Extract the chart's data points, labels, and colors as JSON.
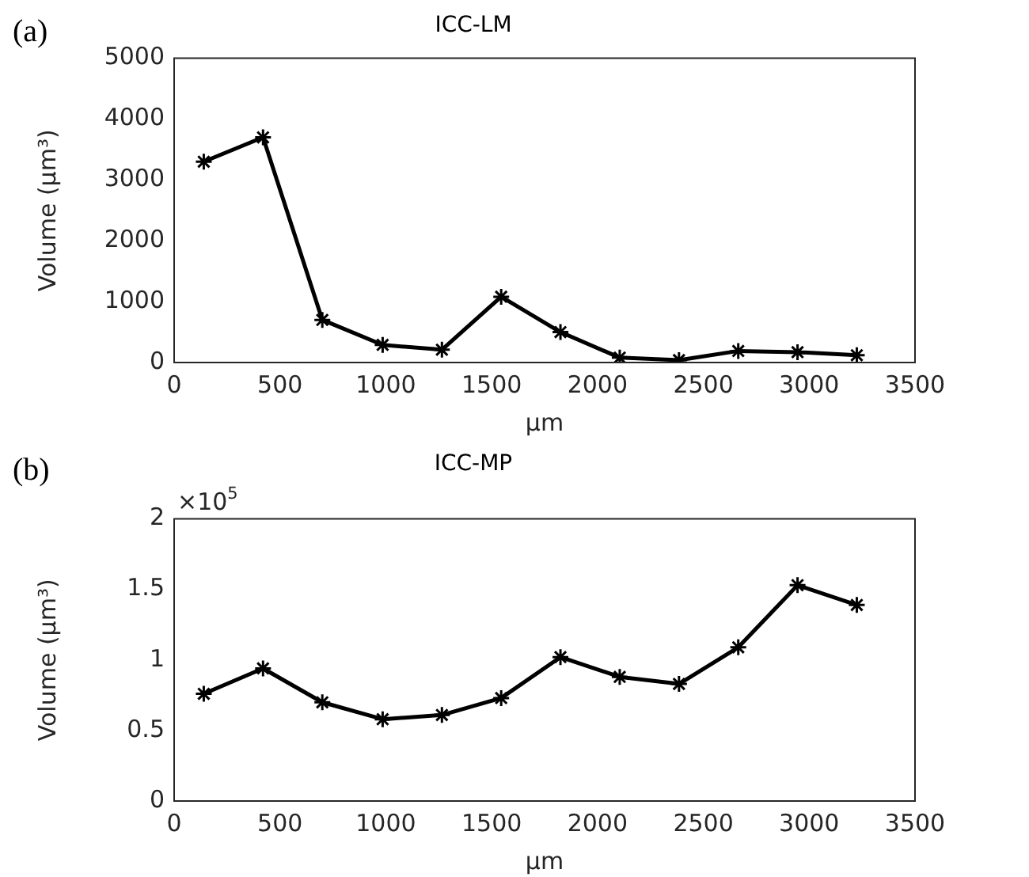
{
  "chart_data": [
    {
      "type": "line",
      "title": "ICC-LM",
      "xlabel": "μm",
      "ylabel": "Volume (μm³)",
      "annotations": [
        "(a)"
      ],
      "x": [
        140,
        420,
        700,
        985,
        1265,
        1545,
        1825,
        2105,
        2385,
        2665,
        2945,
        3225
      ],
      "series": [
        {
          "color": "#000000",
          "values": [
            3300,
            3700,
            700,
            290,
            210,
            1080,
            500,
            80,
            40,
            190,
            170,
            120
          ]
        }
      ],
      "xlim": [
        0,
        3500
      ],
      "xticks": [
        0,
        500,
        1000,
        1500,
        2000,
        2500,
        3000,
        3500
      ],
      "ylim": [
        0,
        5000
      ],
      "yticks": [
        0,
        1000,
        2000,
        3000,
        4000,
        5000
      ],
      "grid": false,
      "legend": false,
      "marker": "cross",
      "line_style": "solid"
    },
    {
      "type": "line",
      "title": "ICC-MP",
      "xlabel": "μm",
      "ylabel": "Volume (μm³)",
      "annotations": [
        "(b)",
        "×10$^{5}$"
      ],
      "x": [
        140,
        420,
        700,
        985,
        1265,
        1545,
        1825,
        2105,
        2385,
        2665,
        2945,
        3225
      ],
      "series": [
        {
          "color": "#000000",
          "values": [
            0.76,
            0.94,
            0.7,
            0.58,
            0.61,
            0.73,
            1.02,
            0.88,
            0.83,
            1.09,
            1.53,
            1.39
          ]
        }
      ],
      "xlim": [
        0,
        3500
      ],
      "xticks": [
        0,
        500,
        1000,
        1500,
        2000,
        2500,
        3000,
        3500
      ],
      "ylim": [
        0,
        2
      ],
      "yticks": [
        0,
        0.5,
        1,
        1.5,
        2
      ],
      "grid": false,
      "legend": false,
      "marker": "cross",
      "line_style": "solid"
    }
  ]
}
